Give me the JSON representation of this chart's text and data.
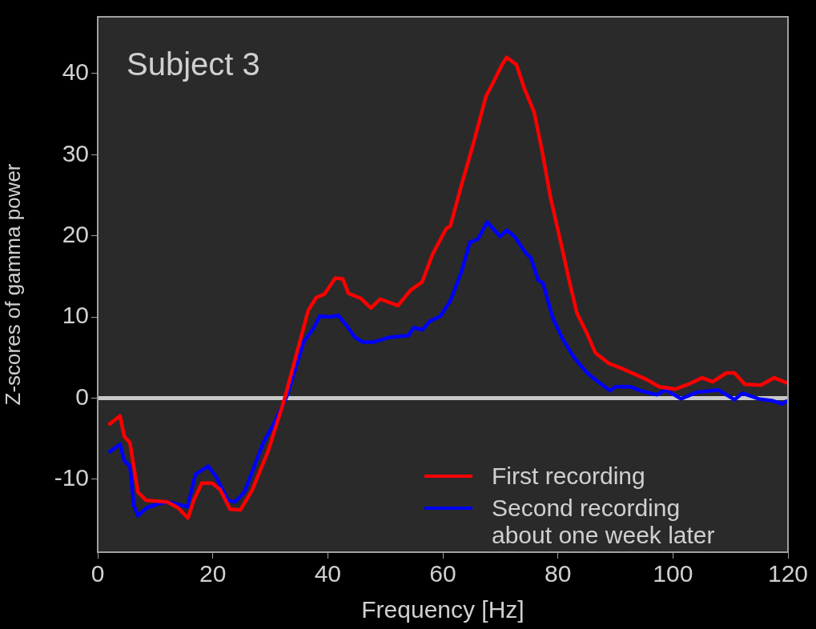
{
  "chart_data": {
    "type": "line",
    "xlabel": "Frequency [Hz]",
    "ylabel": "Z-scores of gamma power",
    "annotations": [
      "Subject 3"
    ],
    "xlim": [
      0,
      120
    ],
    "xticks": [
      0,
      20,
      40,
      60,
      80,
      100,
      120
    ],
    "ylim": [
      -19,
      47
    ],
    "yticks": [
      -10,
      0,
      10,
      20,
      30,
      40
    ],
    "grid": false,
    "legend": "bottom right",
    "marker": "none",
    "line_style": "solid",
    "ref_lines": [
      {
        "axis": "y",
        "value": 0,
        "label": null,
        "color": "#c8c8c8"
      }
    ],
    "series": [
      {
        "name": "First recording",
        "color": "#ff0000",
        "x": [
          2.1,
          3.9,
          4.6,
          5.6,
          7,
          8.4,
          12.1,
          13.9,
          15.7,
          16.7,
          18.1,
          19.9,
          21.3,
          23,
          24.8,
          26.9,
          29.7,
          32.4,
          34.4,
          36.6,
          38,
          39.4,
          41.3,
          42.6,
          43.6,
          45.7,
          47.5,
          49.1,
          52.2,
          54.4,
          56.4,
          58.2,
          60.6,
          61.3,
          63.3,
          65.4,
          67.5,
          68.9,
          70.3,
          71.1,
          72.8,
          74.2,
          75.9,
          77.3,
          78.7,
          80.5,
          81.9,
          83.3,
          85.1,
          86.5,
          88.8,
          91.6,
          95.4,
          97.6,
          100.4,
          102.7,
          105.1,
          106.9,
          109.3,
          110.7,
          112.5,
          115.3,
          117.6,
          119.7
        ],
        "values": [
          -3.2,
          -2.2,
          -4.7,
          -5.5,
          -11.6,
          -12.6,
          -12.8,
          -13.5,
          -14.8,
          -12.6,
          -10.5,
          -10.5,
          -11.3,
          -13.7,
          -13.8,
          -11.3,
          -6.4,
          -0.3,
          5,
          10.8,
          12.4,
          12.8,
          14.8,
          14.7,
          12.9,
          12.3,
          11.1,
          12.2,
          11.4,
          13.3,
          14.3,
          17.7,
          20.9,
          21.2,
          26.4,
          31.6,
          37.2,
          39.1,
          41.1,
          42,
          41.1,
          38.1,
          35.2,
          30.3,
          24.8,
          19.2,
          14.7,
          10.5,
          7.9,
          5.6,
          4.3,
          3.5,
          2.3,
          1.4,
          1.1,
          1.7,
          2.5,
          2,
          3.1,
          3.1,
          1.7,
          1.6,
          2.5,
          1.9
        ]
      },
      {
        "name": "Second recording about one week later",
        "color": "#0000ff",
        "x": [
          2.1,
          3.9,
          4.6,
          5.6,
          6.3,
          7,
          8.6,
          10.7,
          12.1,
          13.9,
          15.6,
          17,
          19.2,
          20.6,
          22.6,
          23.9,
          25.5,
          28.8,
          30.6,
          33,
          35.8,
          37.6,
          38.6,
          40.4,
          41.8,
          43.3,
          44.7,
          46.1,
          48,
          50.8,
          54,
          55,
          56.4,
          57.8,
          59.6,
          61.4,
          63.3,
          64.7,
          66.1,
          67.7,
          70,
          71.1,
          72.5,
          74.5,
          75.3,
          76.6,
          77.4,
          79.1,
          80.9,
          82.8,
          85.1,
          87,
          89.1,
          90,
          92.6,
          94.4,
          97.2,
          98.8,
          101.4,
          104.1,
          107.9,
          110.7,
          112.1,
          114.9,
          117.1,
          119,
          119.7
        ],
        "values": [
          -6.6,
          -5.7,
          -7.7,
          -8.4,
          -13.3,
          -14.5,
          -13.5,
          -13,
          -12.8,
          -13.1,
          -13.4,
          -9.4,
          -8.4,
          -9.7,
          -12.6,
          -12.8,
          -11.6,
          -5.5,
          -3.2,
          0.4,
          6.9,
          8.7,
          10.1,
          10,
          10.2,
          8.9,
          7.5,
          6.9,
          6.9,
          7.5,
          7.7,
          8.7,
          8.4,
          9.5,
          10.1,
          12.1,
          15.7,
          19.2,
          19.6,
          21.7,
          19.9,
          20.7,
          19.9,
          17.8,
          17.3,
          14.5,
          14.2,
          9.9,
          7.2,
          5,
          3.1,
          2,
          0.9,
          1.4,
          1.4,
          0.9,
          0.4,
          1,
          -0.1,
          0.7,
          1,
          -0.2,
          0.6,
          -0.1,
          -0.3,
          -0.7,
          -0.4
        ]
      }
    ]
  }
}
